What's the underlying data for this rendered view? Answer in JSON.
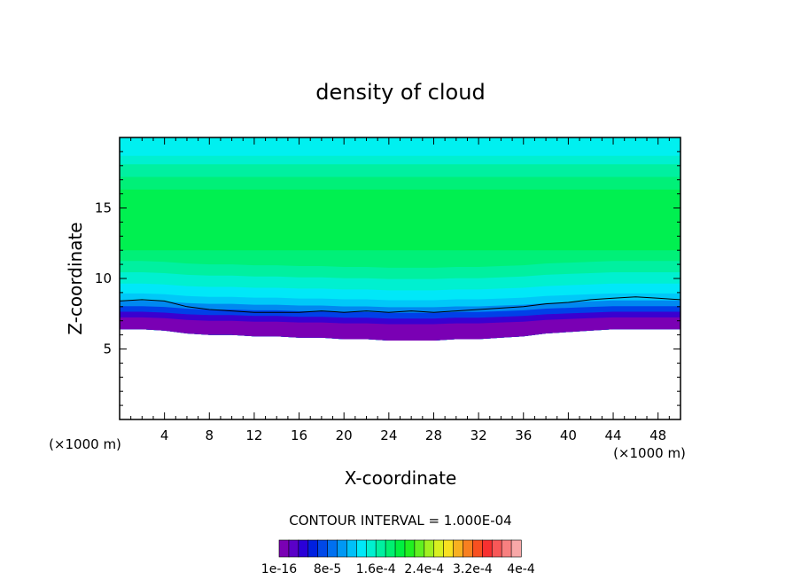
{
  "chart_data": {
    "type": "heatmap",
    "title": "density of cloud",
    "xlabel": "X-coordinate",
    "ylabel": "Z-coordinate",
    "x_unit_left": "(×1000 m)",
    "x_unit_right": "(×1000 m)",
    "xlim": [
      0,
      50
    ],
    "ylim": [
      0,
      20
    ],
    "x_ticks": [
      4,
      8,
      12,
      16,
      20,
      24,
      28,
      32,
      36,
      40,
      44,
      48
    ],
    "y_ticks": [
      5,
      10,
      15
    ],
    "contour_interval_text": "CONTOUR INTERVAL = 1.000E-04",
    "colorbar": {
      "labels": [
        "1e-16",
        "8e-5",
        "1.6e-4",
        "2.4e-4",
        "3.2e-4",
        "4e-4"
      ],
      "colors": [
        "#7a00b4",
        "#5a00c8",
        "#2a00d8",
        "#0020e0",
        "#0048e8",
        "#0070f0",
        "#0098f4",
        "#00c0f8",
        "#00e8f8",
        "#00f0d0",
        "#00f0a0",
        "#00f070",
        "#00f040",
        "#20f020",
        "#60f020",
        "#a0f020",
        "#d8f020",
        "#f8e020",
        "#f8b020",
        "#f88020",
        "#f85020",
        "#f83030",
        "#f85858",
        "#f88080",
        "#f8a8a8"
      ]
    },
    "bands": {
      "x_samples": [
        0,
        2,
        4,
        6,
        8,
        10,
        12,
        14,
        16,
        18,
        20,
        22,
        24,
        26,
        28,
        30,
        32,
        34,
        36,
        38,
        40,
        42,
        44,
        46,
        48,
        50
      ],
      "cloud_base_z": [
        6.4,
        6.4,
        6.3,
        6.1,
        6.0,
        6.0,
        5.9,
        5.9,
        5.8,
        5.8,
        5.7,
        5.7,
        5.6,
        5.6,
        5.6,
        5.7,
        5.7,
        5.8,
        5.9,
        6.1,
        6.2,
        6.3,
        6.4,
        6.4,
        6.4,
        6.4
      ],
      "contour_line_z": [
        8.4,
        8.5,
        8.4,
        8.0,
        7.8,
        7.7,
        7.6,
        7.6,
        7.6,
        7.7,
        7.6,
        7.7,
        7.6,
        7.7,
        7.6,
        7.7,
        7.8,
        7.9,
        8.0,
        8.2,
        8.3,
        8.5,
        8.6,
        8.7,
        8.6,
        8.5
      ],
      "layers": [
        {
          "z_top": 7.0,
          "color": "#7a00b4"
        },
        {
          "z_top": 7.4,
          "color": "#3a00d0"
        },
        {
          "z_top": 7.8,
          "color": "#0040e8"
        },
        {
          "z_top": 8.2,
          "color": "#0088f0"
        },
        {
          "z_top": 8.7,
          "color": "#00c8f8"
        },
        {
          "z_top": 9.4,
          "color": "#00e8f8"
        },
        {
          "z_top": 10.2,
          "color": "#00f0d0"
        },
        {
          "z_top": 11.0,
          "color": "#00f0a0"
        },
        {
          "z_top": 12.0,
          "color": "#00f078"
        },
        {
          "z_top": 16.3,
          "color": "#00f050"
        },
        {
          "z_top": 17.2,
          "color": "#00f078"
        },
        {
          "z_top": 18.1,
          "color": "#00f0a0"
        },
        {
          "z_top": 18.7,
          "color": "#00f0d0"
        },
        {
          "z_top": 20.0,
          "color": "#00f0f0"
        }
      ]
    }
  }
}
